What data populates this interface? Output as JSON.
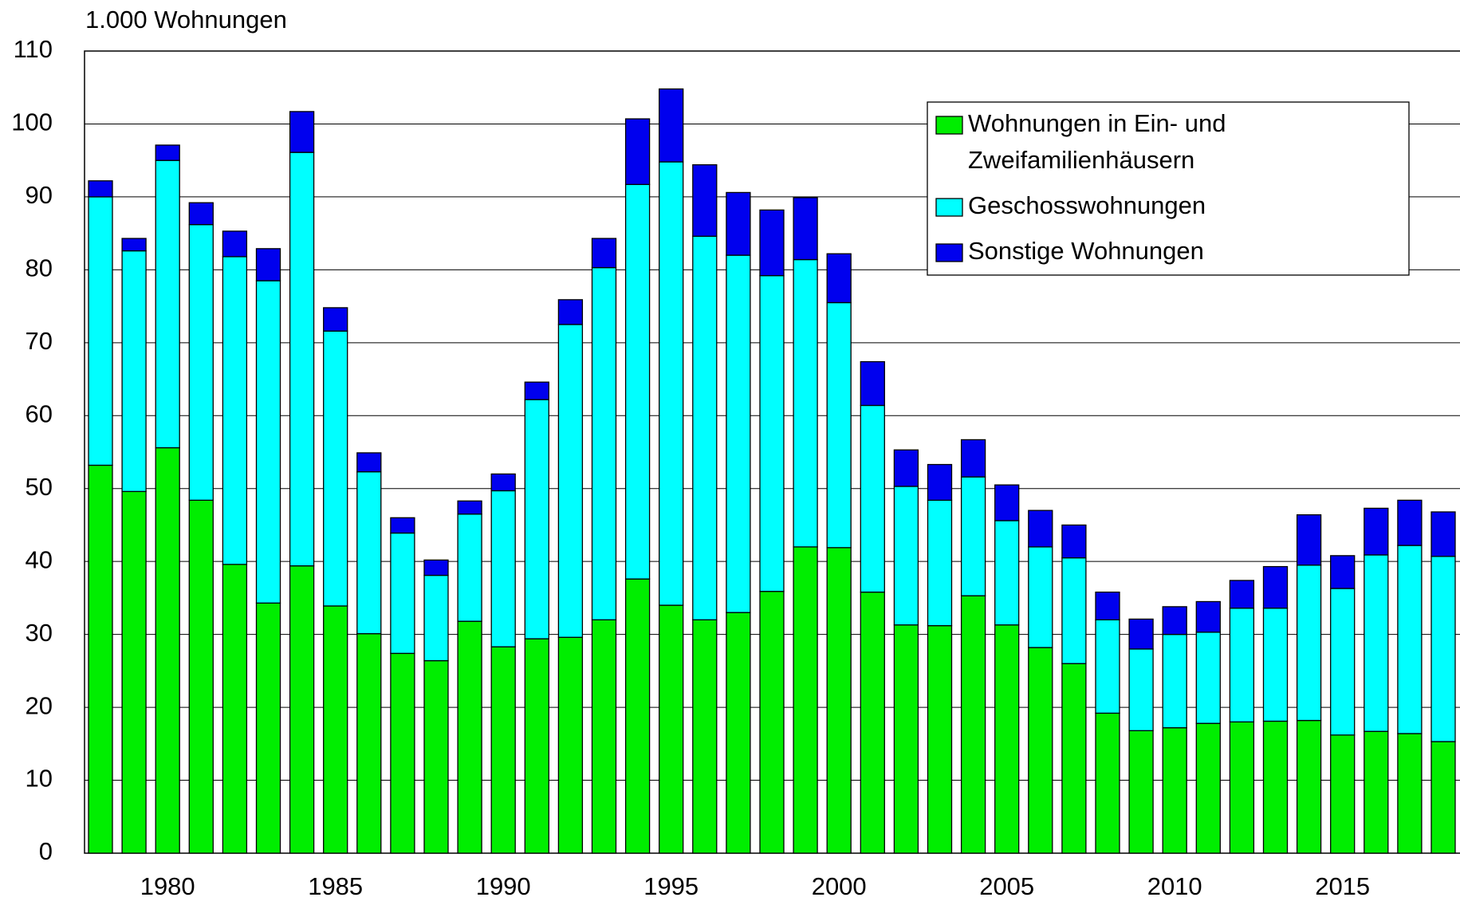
{
  "chart_data": {
    "type": "stacked_bar",
    "title": "1.000 Wohnungen",
    "categories": [
      null,
      null,
      "1980",
      null,
      null,
      null,
      null,
      "1985",
      null,
      null,
      null,
      null,
      "1990",
      null,
      null,
      null,
      null,
      "1995",
      null,
      null,
      null,
      null,
      "2000",
      null,
      null,
      null,
      null,
      "2005",
      null,
      null,
      null,
      null,
      "2010",
      null,
      null,
      null,
      null,
      "2015",
      null,
      null,
      null
    ],
    "series": [
      {
        "name": "Wohnungen in Ein- und\nZweifamilienhäusern",
        "color": "#00ee00",
        "values": [
          53.2,
          49.6,
          55.6,
          48.4,
          39.6,
          34.3,
          39.4,
          33.9,
          30.1,
          27.4,
          26.4,
          31.8,
          28.3,
          29.4,
          29.6,
          32.0,
          37.6,
          34.0,
          32.0,
          33.0,
          35.9,
          42.0,
          41.9,
          35.8,
          31.3,
          31.2,
          35.3,
          31.3,
          28.2,
          26.0,
          19.2,
          16.8,
          17.2,
          17.8,
          18.0,
          18.1,
          18.2,
          16.2,
          16.7,
          16.4,
          15.3
        ]
      },
      {
        "name": "Geschosswohnungen",
        "color": "#00ffff",
        "values": [
          36.8,
          33.0,
          39.4,
          37.8,
          42.2,
          44.2,
          56.7,
          37.7,
          22.2,
          16.5,
          11.7,
          14.7,
          21.4,
          32.8,
          42.9,
          48.3,
          54.1,
          60.8,
          52.6,
          49.0,
          43.3,
          39.4,
          33.6,
          25.6,
          19.0,
          17.2,
          16.3,
          14.3,
          13.8,
          14.5,
          12.8,
          11.2,
          12.8,
          12.5,
          15.6,
          15.5,
          21.3,
          20.1,
          24.2,
          25.8,
          25.4
        ]
      },
      {
        "name": "Sonstige Wohnungen",
        "color": "#0000ee",
        "values": [
          2.2,
          1.7,
          2.1,
          3.0,
          3.5,
          4.4,
          5.6,
          3.2,
          2.6,
          2.1,
          2.1,
          1.8,
          2.3,
          2.4,
          3.4,
          4.0,
          9.0,
          10.0,
          9.8,
          8.6,
          9.0,
          8.5,
          6.7,
          6.0,
          5.0,
          4.9,
          5.1,
          4.9,
          5.0,
          4.5,
          3.8,
          4.1,
          3.8,
          4.2,
          3.8,
          5.7,
          6.9,
          4.5,
          6.4,
          6.2,
          6.1
        ]
      }
    ],
    "ylim": [
      0,
      110
    ],
    "yticks": [
      0,
      10,
      20,
      30,
      40,
      50,
      60,
      70,
      80,
      90,
      100,
      110
    ],
    "grid": true,
    "legend": "upper right"
  }
}
